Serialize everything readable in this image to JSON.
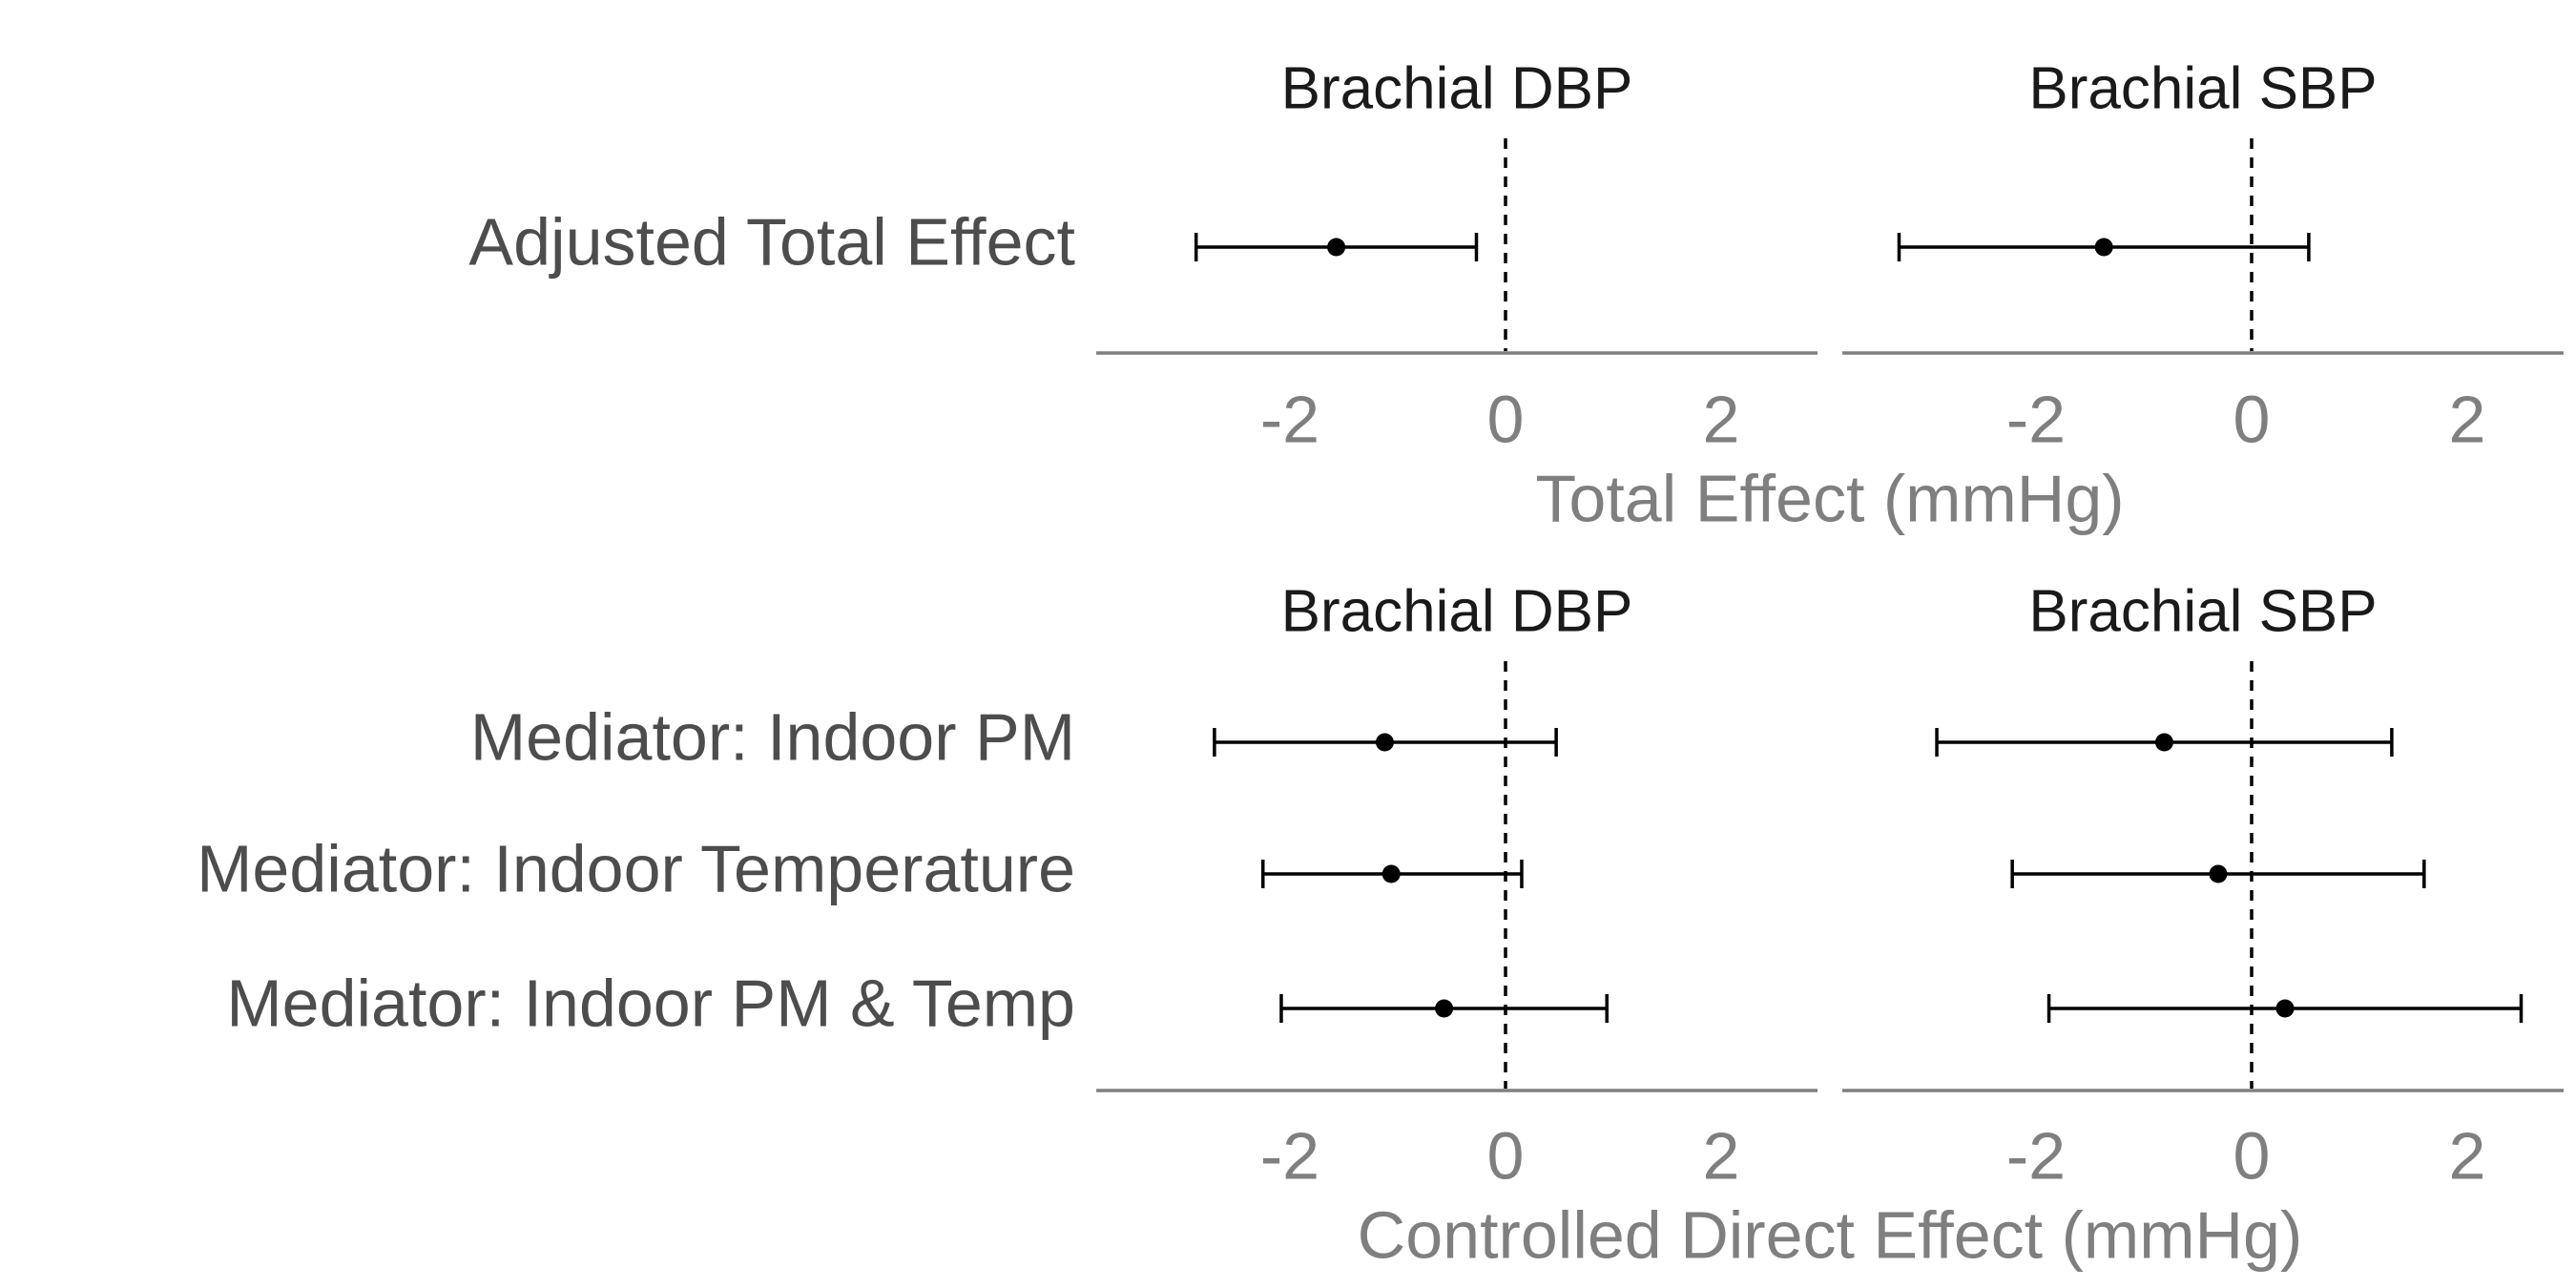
{
  "chart_data": [
    {
      "type": "forest",
      "xlabel": "Total Effect (mmHg)",
      "xlim": [
        -3.8,
        2.9
      ],
      "xticks": [
        "-2",
        "0",
        "2"
      ],
      "reference_line": 0,
      "rows": [
        "Adjusted Total Effect"
      ],
      "panels": [
        {
          "title": "Brachial DBP",
          "estimates": [
            {
              "row": "Adjusted Total Effect",
              "estimate": -1.57,
              "lower": -2.87,
              "upper": -0.27
            }
          ]
        },
        {
          "title": "Brachial SBP",
          "estimates": [
            {
              "row": "Adjusted Total Effect",
              "estimate": -1.37,
              "lower": -3.27,
              "upper": 0.53
            }
          ]
        }
      ]
    },
    {
      "type": "forest",
      "xlabel": "Controlled Direct Effect (mmHg)",
      "xlim": [
        -3.8,
        2.9
      ],
      "xticks": [
        "-2",
        "0",
        "2"
      ],
      "reference_line": 0,
      "rows": [
        "Mediator: Indoor PM",
        "Mediator: Indoor Temperature",
        "Mediator: Indoor PM & Temp"
      ],
      "panels": [
        {
          "title": "Brachial DBP",
          "estimates": [
            {
              "row": "Mediator: Indoor PM",
              "estimate": -1.12,
              "lower": -2.7,
              "upper": 0.47
            },
            {
              "row": "Mediator: Indoor Temperature",
              "estimate": -1.06,
              "lower": -2.25,
              "upper": 0.15
            },
            {
              "row": "Mediator: Indoor PM & Temp",
              "estimate": -0.57,
              "lower": -2.08,
              "upper": 0.94
            }
          ]
        },
        {
          "title": "Brachial SBP",
          "estimates": [
            {
              "row": "Mediator: Indoor PM",
              "estimate": -0.81,
              "lower": -2.92,
              "upper": 1.3
            },
            {
              "row": "Mediator: Indoor Temperature",
              "estimate": -0.31,
              "lower": -2.22,
              "upper": 1.6
            },
            {
              "row": "Mediator: Indoor PM & Temp",
              "estimate": 0.31,
              "lower": -1.88,
              "upper": 2.5
            }
          ]
        }
      ]
    }
  ]
}
